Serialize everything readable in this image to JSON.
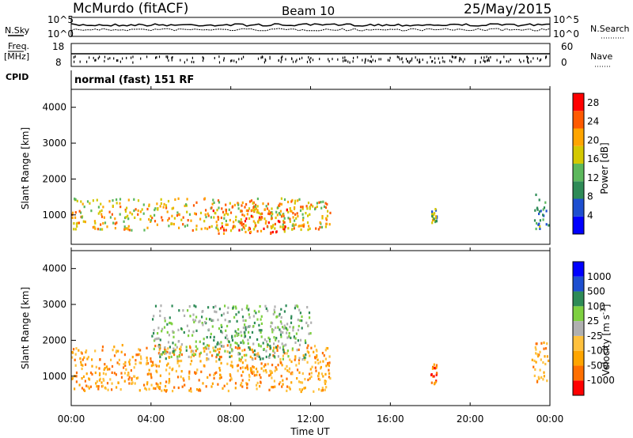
{
  "header": {
    "station": "McMurdo (fitACF)",
    "beam": "Beam 10",
    "date": "25/May/2015"
  },
  "status_panel": {
    "nsky_label": "N.Sky",
    "nsearch_label": "N.Search",
    "nsky_ticks": [
      "10^5",
      "10^0"
    ],
    "nsearch_ticks": [
      "10^5",
      "10^0"
    ],
    "freq_label": "Freq.",
    "freq_unit": "[MHz]",
    "freq_ticks": [
      "18",
      "8"
    ],
    "nave_label": "Nave",
    "nave_ticks": [
      "60",
      "0"
    ],
    "cpid_label": "CPID",
    "cpid_text": "normal (fast) 151 RF"
  },
  "colors": {
    "power": [
      "#0000ff",
      "#1e4fd0",
      "#2e8b57",
      "#5cb85c",
      "#d4c800",
      "#ffa500",
      "#ff5a00",
      "#ff0000"
    ],
    "velocity": [
      "#ff0000",
      "#ff6f00",
      "#ffa500",
      "#ffc13d",
      "#b0b0b0",
      "#7ed040",
      "#2e8b57",
      "#1e4fd0",
      "#0000ff"
    ]
  },
  "chart_data": [
    {
      "type": "heatmap",
      "quantity": "Power",
      "ylabel": "Slant Range [km]",
      "colorbar_label": "Power [dB]",
      "colorbar_ticks": [
        "4",
        "8",
        "12",
        "16",
        "20",
        "24",
        "28"
      ],
      "colorbar_range": [
        0,
        30
      ],
      "ylim": [
        180,
        4500
      ],
      "yticks": [
        "1000",
        "2000",
        "3000",
        "4000"
      ],
      "ytick_values": [
        1000,
        2000,
        3000,
        4000
      ],
      "xlim": [
        0,
        24
      ],
      "features": [
        {
          "t0": 0,
          "t1": 13,
          "r0": 600,
          "r1": 1500,
          "peak_db": 26
        },
        {
          "t0": 7,
          "t1": 11,
          "r0": 500,
          "r1": 1200,
          "peak_db": 29
        },
        {
          "t0": 18,
          "t1": 18.3,
          "r0": 800,
          "r1": 1200,
          "peak_db": 20
        },
        {
          "t0": 23.2,
          "t1": 24,
          "r0": 600,
          "r1": 1600,
          "peak_db": 18
        }
      ]
    },
    {
      "type": "heatmap",
      "quantity": "Velocity",
      "ylabel": "Slant Range [km]",
      "colorbar_label": "Velocity [m s^-1]",
      "colorbar_ticks": [
        "1000",
        "500",
        "100",
        "25",
        "-25",
        "-100",
        "-500",
        "-1000"
      ],
      "ylim": [
        180,
        4500
      ],
      "yticks": [
        "1000",
        "2000",
        "3000",
        "4000"
      ],
      "ytick_values": [
        1000,
        2000,
        3000,
        4000
      ],
      "xlim": [
        0,
        24
      ],
      "features": [
        {
          "t0": 0,
          "t1": 13,
          "r0": 600,
          "r1": 1900,
          "typical": "-100"
        },
        {
          "t0": 4,
          "t1": 12,
          "r0": 1500,
          "r1": 3000,
          "typical": "100"
        },
        {
          "t0": 18,
          "t1": 18.3,
          "r0": 800,
          "r1": 1400,
          "typical": "-500"
        },
        {
          "t0": 23,
          "t1": 24,
          "r0": 800,
          "r1": 2000,
          "typical": "-100"
        }
      ]
    }
  ],
  "xaxis": {
    "label": "Time UT",
    "ticks": [
      "00:00",
      "04:00",
      "08:00",
      "12:00",
      "16:00",
      "20:00",
      "00:00"
    ],
    "tick_hours": [
      0,
      4,
      8,
      12,
      16,
      20,
      24
    ]
  }
}
